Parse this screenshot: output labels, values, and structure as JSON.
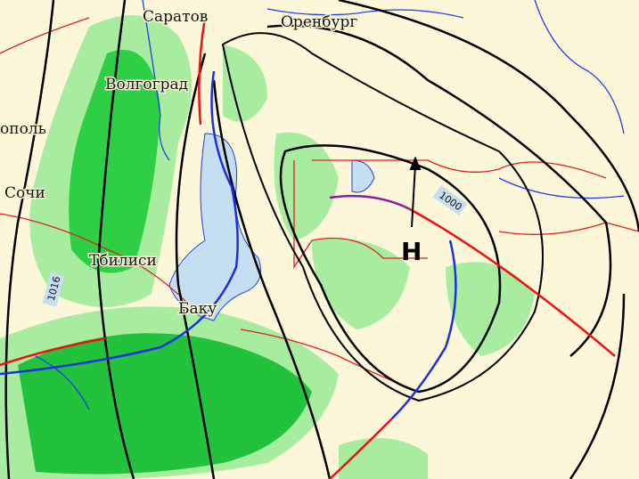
{
  "map": {
    "cities": [
      {
        "id": "saratov",
        "name": "Саратов"
      },
      {
        "id": "orenburg",
        "name": "Оренбург"
      },
      {
        "id": "volgograd",
        "name": "Волгоград"
      },
      {
        "id": "stavropol",
        "name": "ополь"
      },
      {
        "id": "sochi",
        "name": "Сочи"
      },
      {
        "id": "tbilisi",
        "name": "Тбилиси"
      },
      {
        "id": "baku",
        "name": "Баку"
      }
    ],
    "isobar_labels": [
      "1016",
      "1000"
    ],
    "pressure_center": "Н",
    "colors": {
      "background": "#fbf7d8",
      "precipitation_light": "#a8eca0",
      "precipitation_heavy": "#1fc13a",
      "sea": "#c6dff0",
      "isobar": "#000000",
      "cold_front": "#1a2fe0",
      "warm_front": "#f01010",
      "occluded_front": "#8a1ea0",
      "border": "#e02020",
      "river": "#2040e0"
    }
  }
}
